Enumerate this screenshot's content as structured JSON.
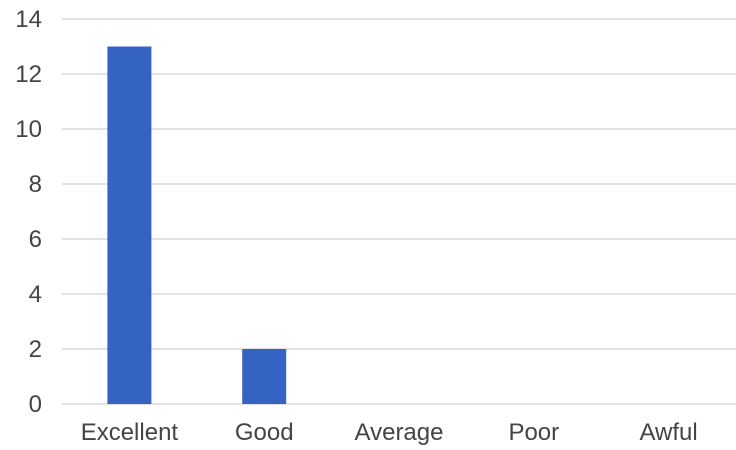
{
  "chart_data": {
    "type": "bar",
    "categories": [
      "Excellent",
      "Good",
      "Average",
      "Poor",
      "Awful"
    ],
    "values": [
      13,
      2,
      0,
      0,
      0
    ],
    "title": "",
    "xlabel": "",
    "ylabel": "",
    "ylim": [
      0,
      14
    ],
    "y_ticks": [
      0,
      2,
      4,
      6,
      8,
      10,
      12,
      14
    ],
    "grid": true,
    "legend": "none",
    "bar_color": "#3563c4",
    "grid_color": "#d9d9d9",
    "text_color": "#444444"
  }
}
